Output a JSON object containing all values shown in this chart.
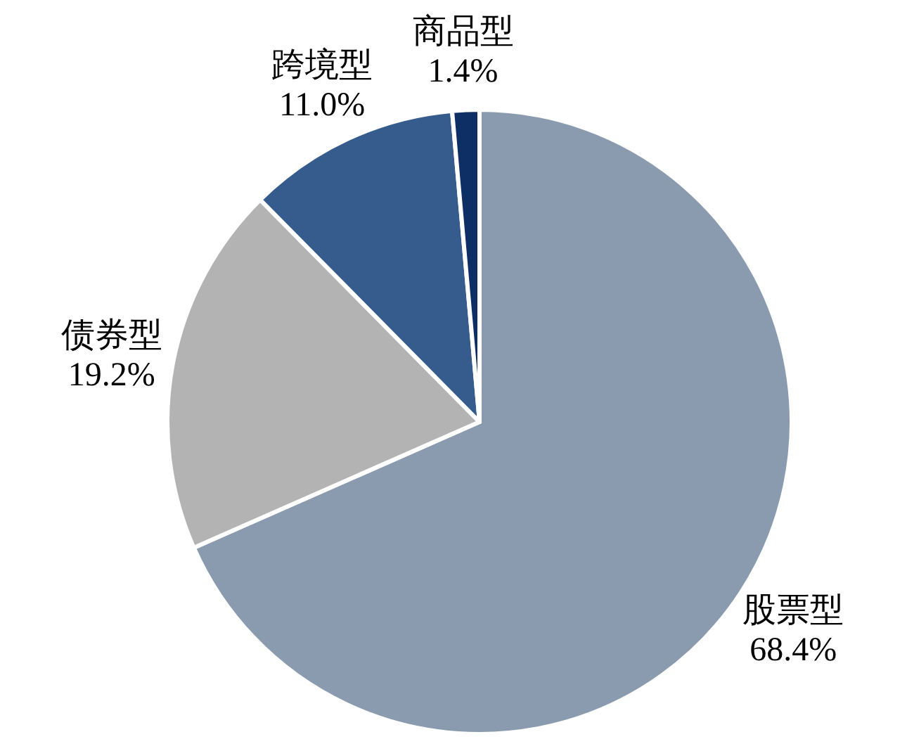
{
  "chart_data": {
    "type": "pie",
    "categories": [
      "股票型",
      "债券型",
      "跨境型",
      "商品型"
    ],
    "values": [
      68.4,
      19.2,
      11.0,
      1.4
    ],
    "colors": [
      "#8a9bb0",
      "#b3b3b3",
      "#355c8c",
      "#0d2f66"
    ],
    "value_labels": [
      "68.4%",
      "19.2%",
      "11.0%",
      "1.4%"
    ]
  }
}
